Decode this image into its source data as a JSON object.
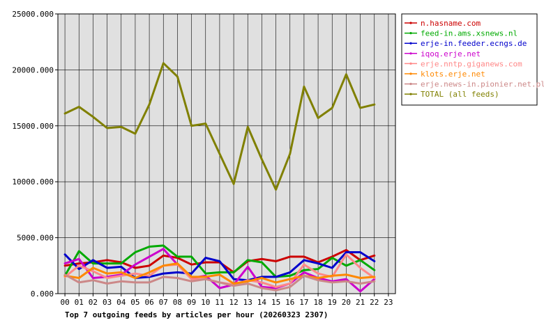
{
  "chart_data": {
    "type": "line",
    "title": "Top 7 outgoing feeds by articles per hour (20260323 2307)",
    "xlabel": "",
    "ylabel": "",
    "x_ticks": [
      "00",
      "01",
      "02",
      "03",
      "04",
      "05",
      "06",
      "07",
      "08",
      "09",
      "10",
      "11",
      "12",
      "13",
      "14",
      "15",
      "16",
      "17",
      "18",
      "19",
      "20",
      "21",
      "22",
      "23"
    ],
    "y_ticks": [
      "0.000",
      "5000.000",
      "10000.000",
      "15000.000",
      "20000.000",
      "25000.000"
    ],
    "ylim": [
      0,
      25000
    ],
    "grid": true,
    "legend_position": "right",
    "plot_background": "#e0e0e0",
    "series": [
      {
        "name": "n.hasname.com",
        "color": "#cc0000",
        "values": [
          2500,
          2700,
          2800,
          3000,
          2800,
          2300,
          2500,
          3400,
          3200,
          2600,
          2800,
          2800,
          1900,
          2900,
          3100,
          2900,
          3300,
          3300,
          2800,
          3300,
          3900,
          3000,
          3400
        ]
      },
      {
        "name": "feed-in.ams.xsnews.nl",
        "color": "#00aa00",
        "values": [
          1600,
          3800,
          2700,
          2700,
          2700,
          3700,
          4200,
          4300,
          3300,
          3300,
          1800,
          1900,
          1900,
          3000,
          2800,
          1500,
          1600,
          2100,
          2200,
          3200,
          2500,
          3000,
          2100
        ]
      },
      {
        "name": "erje-in.feeder.ecngs.de",
        "color": "#0000cc",
        "values": [
          3500,
          2200,
          3000,
          2300,
          2400,
          1400,
          1500,
          1800,
          1900,
          1800,
          3200,
          2900,
          1300,
          1200,
          1500,
          1500,
          1900,
          3000,
          2700,
          2300,
          3700,
          3700,
          2900
        ]
      },
      {
        "name": "iqoq.erje.net",
        "color": "#cc00cc",
        "values": [
          2700,
          3100,
          1400,
          1500,
          1700,
          2600,
          3300,
          4000,
          2600,
          1400,
          1600,
          500,
          800,
          2400,
          600,
          500,
          900,
          1900,
          1400,
          1100,
          1300,
          200,
          1300
        ]
      },
      {
        "name": "erje.nntp.giganews.com",
        "color": "#ff8888",
        "values": [
          1500,
          2500,
          2000,
          1400,
          1600,
          1800,
          1600,
          2500,
          2600,
          1300,
          1300,
          1000,
          800,
          1200,
          1000,
          600,
          900,
          2600,
          1800,
          1500,
          3500,
          2300,
          1400
        ]
      },
      {
        "name": "klots.erje.net",
        "color": "#ff8800",
        "values": [
          1600,
          1400,
          2300,
          1800,
          1900,
          1400,
          1900,
          2500,
          2700,
          1500,
          1500,
          1700,
          900,
          1100,
          1400,
          1000,
          1300,
          1600,
          1400,
          1600,
          1700,
          1400,
          1500
        ]
      },
      {
        "name": "erje.news-in.pionier.net.pl",
        "color": "#cc8888",
        "values": [
          1700,
          1000,
          1200,
          900,
          1100,
          1000,
          1000,
          1500,
          1400,
          1100,
          1300,
          1000,
          700,
          900,
          500,
          300,
          600,
          1600,
          1200,
          1000,
          1100,
          900,
          1100
        ]
      },
      {
        "name": "TOTAL (all feeds)",
        "color": "#808000",
        "values": [
          16100,
          16700,
          15800,
          14800,
          14900,
          14300,
          16900,
          20600,
          19400,
          15000,
          15200,
          12500,
          9800,
          14900,
          12000,
          9300,
          12500,
          18500,
          15700,
          16600,
          19600,
          16600,
          16900
        ]
      }
    ]
  }
}
